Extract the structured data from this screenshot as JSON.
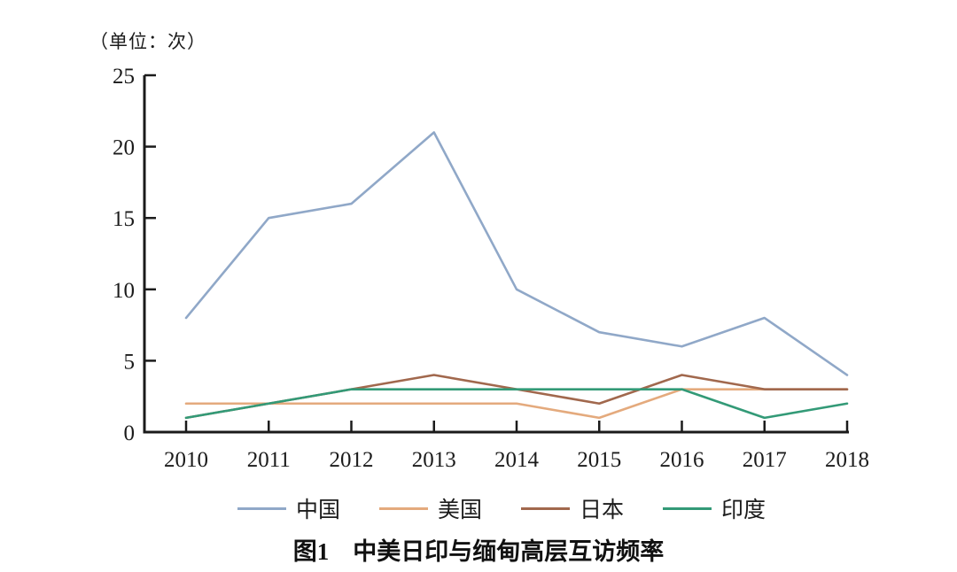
{
  "figure": {
    "unit_label": "（单位：次）",
    "caption": "图1　中美日印与缅甸高层互访频率"
  },
  "chart_data": {
    "type": "line",
    "title": "图1 中美日印与缅甸高层互访频率",
    "unit": "（单位：次）",
    "xlabel": "",
    "ylabel": "",
    "categories": [
      "2010",
      "2011",
      "2012",
      "2013",
      "2014",
      "2015",
      "2016",
      "2017",
      "2018"
    ],
    "series": [
      {
        "key": "china",
        "name": "中国",
        "color": "#90a8c8",
        "values": [
          8,
          15,
          16,
          21,
          10,
          7,
          6,
          8,
          4
        ]
      },
      {
        "key": "usa",
        "name": "美国",
        "color": "#e4aa7d",
        "values": [
          2,
          2,
          2,
          2,
          2,
          1,
          3,
          3,
          3
        ]
      },
      {
        "key": "japan",
        "name": "日本",
        "color": "#a1684d",
        "values": [
          1,
          2,
          3,
          4,
          3,
          2,
          4,
          3,
          3
        ]
      },
      {
        "key": "india",
        "name": "印度",
        "color": "#339a77",
        "values": [
          1,
          2,
          3,
          3,
          3,
          3,
          3,
          1,
          2
        ]
      }
    ],
    "ylim": [
      0,
      25
    ],
    "yticks": [
      0,
      5,
      10,
      15,
      20,
      25
    ],
    "grid": false,
    "legend_position": "bottom",
    "axis_color": "#1b1b1b"
  }
}
